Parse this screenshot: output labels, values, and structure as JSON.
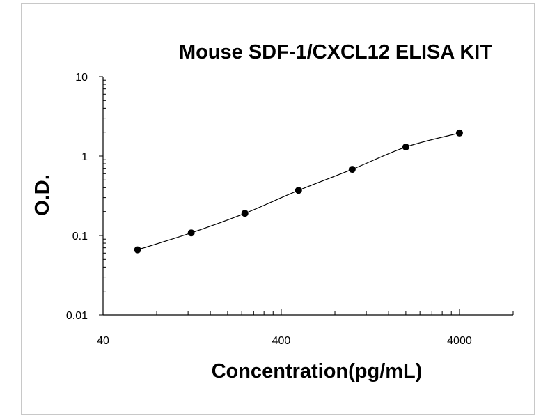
{
  "chart_data": {
    "type": "scatter",
    "title": "Mouse SDF-1/CXCL12 ELISA KIT",
    "xlabel": "Concentration(pg/mL)",
    "ylabel": "O.D.",
    "x_scale": "log",
    "y_scale": "log",
    "xlim": [
      40,
      8000
    ],
    "ylim": [
      0.01,
      10
    ],
    "x_ticks": [
      "40",
      "400",
      "4000"
    ],
    "y_ticks": [
      "10",
      "1",
      "0.1",
      "0.01"
    ],
    "grid": false,
    "legend": "none",
    "series": [
      {
        "x": [
          62.5,
          125,
          250,
          500,
          1000,
          2000,
          4000
        ],
        "y": [
          0.066,
          0.108,
          0.19,
          0.37,
          0.68,
          1.3,
          1.95
        ],
        "curve": "smooth-fit"
      }
    ]
  }
}
